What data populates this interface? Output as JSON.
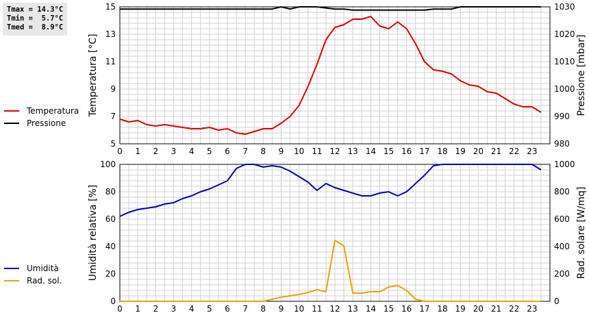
{
  "stats": {
    "tmax": "Tmax = 14.3°C",
    "tmin": "Tmin =  5.7°C",
    "tmed": "Tmed =  8.9°C"
  },
  "legend_top": [
    {
      "label": "Temperatura",
      "color": "#dd0000"
    },
    {
      "label": "Pressione",
      "color": "#000000"
    }
  ],
  "legend_bottom": [
    {
      "label": "Umidità",
      "color": "#0000bb"
    },
    {
      "label": "Rad. sol.",
      "color": "#f0a000"
    }
  ],
  "chart_data": [
    {
      "type": "line",
      "xlabel": "",
      "x_ticks": [
        "0",
        "1",
        "2",
        "3",
        "4",
        "5",
        "6",
        "7",
        "8",
        "9",
        "10",
        "11",
        "12",
        "13",
        "14",
        "15",
        "16",
        "17",
        "18",
        "19",
        "20",
        "21",
        "22",
        "23"
      ],
      "xlim": [
        0,
        24
      ],
      "left_axis": {
        "label": "Temperatura [°C]",
        "ylim": [
          5,
          15
        ],
        "ticks": [
          "5",
          "7",
          "9",
          "11",
          "13",
          "15"
        ]
      },
      "right_axis": {
        "label": "Pressione [mbar]",
        "ylim": [
          980,
          1030
        ],
        "ticks": [
          "980",
          "990",
          "1000",
          "1010",
          "1020",
          "1030"
        ]
      },
      "grid": true,
      "series": [
        {
          "name": "Temperatura",
          "axis": "left",
          "color": "#dd0000",
          "x": [
            0,
            0.5,
            1,
            1.5,
            2,
            2.5,
            3,
            3.5,
            4,
            4.5,
            5,
            5.5,
            6,
            6.5,
            7,
            7.5,
            8,
            8.5,
            9,
            9.5,
            10,
            10.5,
            11,
            11.5,
            12,
            12.5,
            13,
            13.5,
            14,
            14.5,
            15,
            15.5,
            16,
            16.5,
            17,
            17.5,
            18,
            18.5,
            19,
            19.5,
            20,
            20.5,
            21,
            21.5,
            22,
            22.5,
            23,
            23.5
          ],
          "y": [
            6.8,
            6.6,
            6.7,
            6.4,
            6.3,
            6.4,
            6.3,
            6.2,
            6.1,
            6.1,
            6.2,
            6.0,
            6.1,
            5.8,
            5.7,
            5.9,
            6.1,
            6.1,
            6.5,
            7.0,
            7.8,
            9.2,
            10.8,
            12.6,
            13.5,
            13.7,
            14.1,
            14.1,
            14.3,
            13.6,
            13.4,
            13.9,
            13.4,
            12.3,
            11.0,
            10.4,
            10.3,
            10.1,
            9.6,
            9.3,
            9.2,
            8.8,
            8.7,
            8.3,
            7.9,
            7.7,
            7.7,
            7.3
          ]
        },
        {
          "name": "Pressione",
          "axis": "right",
          "color": "#000000",
          "x": [
            0,
            1,
            2,
            3,
            4,
            5,
            6,
            7,
            8,
            8.5,
            9,
            9.5,
            10,
            11,
            12,
            12.5,
            13,
            14,
            15,
            16,
            17,
            17.5,
            18,
            18.5,
            19,
            20,
            21,
            22,
            23,
            23.5
          ],
          "y": [
            1029.2,
            1029.2,
            1029.2,
            1029.2,
            1029.2,
            1029.2,
            1029.2,
            1029.2,
            1029.2,
            1029.2,
            1030,
            1029.2,
            1030,
            1030,
            1029.2,
            1029.2,
            1028.8,
            1028.8,
            1028.8,
            1028.8,
            1028.8,
            1029.2,
            1029.2,
            1029.2,
            1030,
            1030,
            1030,
            1030,
            1030,
            1030
          ]
        }
      ]
    },
    {
      "type": "line",
      "xlabel": "",
      "x_ticks": [
        "0",
        "1",
        "2",
        "3",
        "4",
        "5",
        "6",
        "7",
        "8",
        "9",
        "10",
        "11",
        "12",
        "13",
        "14",
        "15",
        "16",
        "17",
        "18",
        "19",
        "20",
        "21",
        "22",
        "23"
      ],
      "xlim": [
        0,
        24
      ],
      "left_axis": {
        "label": "Umidità relativa [%]",
        "ylim": [
          0,
          100
        ],
        "ticks": [
          "0",
          "20",
          "40",
          "60",
          "80",
          "100"
        ]
      },
      "right_axis": {
        "label": "Rad. solare [W/mq]",
        "ylim": [
          0,
          1000
        ],
        "ticks": [
          "0",
          "200",
          "400",
          "600",
          "800",
          "1000"
        ]
      },
      "grid": true,
      "series": [
        {
          "name": "Umidità",
          "axis": "left",
          "color": "#0000bb",
          "x": [
            0,
            0.5,
            1,
            1.5,
            2,
            2.5,
            3,
            3.5,
            4,
            4.5,
            5,
            5.5,
            6,
            6.5,
            7,
            7.5,
            8,
            8.5,
            9,
            9.5,
            10,
            10.5,
            11,
            11.5,
            12,
            12.5,
            13,
            13.5,
            14,
            14.5,
            15,
            15.5,
            16,
            16.5,
            17,
            17.5,
            18,
            18.5,
            19,
            20,
            21,
            22,
            23,
            23.5
          ],
          "y": [
            62,
            65,
            67,
            68,
            69,
            71,
            72,
            75,
            77,
            80,
            82,
            85,
            88,
            97,
            100,
            100,
            98,
            99,
            98,
            95,
            91,
            87,
            81,
            86,
            83,
            81,
            79,
            77,
            77,
            79,
            80,
            77,
            80,
            86,
            92,
            99,
            100,
            100,
            100,
            100,
            100,
            100,
            100,
            96
          ]
        },
        {
          "name": "Rad. sol.",
          "axis": "right",
          "color": "#f0a000",
          "x": [
            0,
            1,
            2,
            3,
            4,
            5,
            6,
            7,
            8,
            8.5,
            9,
            9.5,
            10,
            10.5,
            11,
            11.5,
            12,
            12.5,
            13,
            13.5,
            14,
            14.5,
            15,
            15.5,
            16,
            16.5,
            17,
            18,
            19,
            20,
            21,
            22,
            23,
            23.5
          ],
          "y": [
            0,
            0,
            0,
            0,
            0,
            0,
            0,
            0,
            0,
            15,
            30,
            40,
            50,
            65,
            85,
            70,
            445,
            405,
            60,
            60,
            70,
            70,
            105,
            115,
            80,
            15,
            0,
            0,
            0,
            0,
            0,
            0,
            0,
            0
          ]
        }
      ]
    }
  ]
}
